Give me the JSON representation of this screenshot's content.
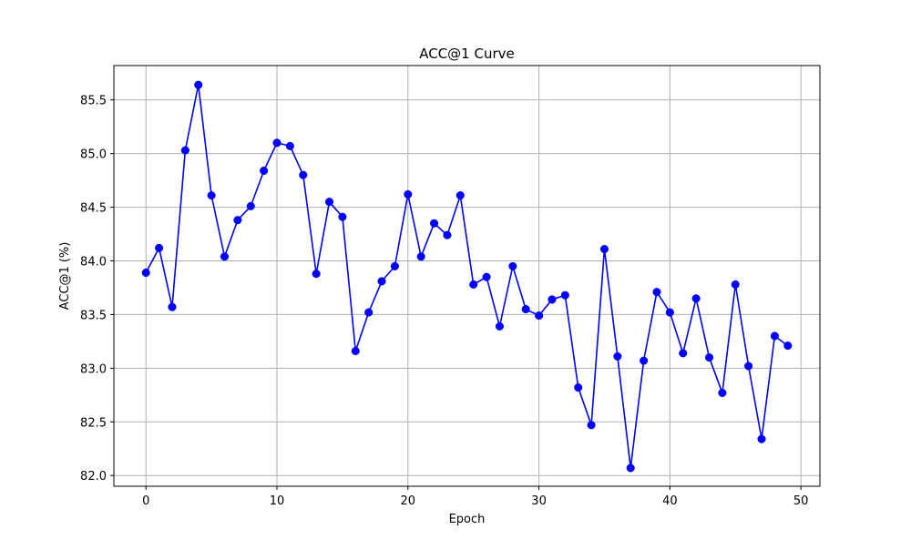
{
  "chart_data": {
    "type": "line",
    "title": "ACC@1 Curve",
    "xlabel": "Epoch",
    "ylabel": "ACC@1 (%)",
    "xlim": [
      -2.45,
      51.45
    ],
    "ylim": [
      81.9,
      85.82
    ],
    "x_ticks": [
      0,
      10,
      20,
      30,
      40,
      50
    ],
    "y_ticks": [
      82.0,
      82.5,
      83.0,
      83.5,
      84.0,
      84.5,
      85.0,
      85.5
    ],
    "grid": true,
    "marker": "circle",
    "line_color": "#0000ff",
    "marker_color": "#0000ff",
    "series": [
      {
        "x": [
          0,
          1,
          2,
          3,
          4,
          5,
          6,
          7,
          8,
          9,
          10,
          11,
          12,
          13,
          14,
          15,
          16,
          17,
          18,
          19,
          20,
          21,
          22,
          23,
          24,
          25,
          26,
          27,
          28,
          29,
          30,
          31,
          32,
          33,
          34,
          35,
          36,
          37,
          38,
          39,
          40,
          41,
          42,
          43,
          44,
          45,
          46,
          47,
          48,
          49
        ],
        "values": [
          83.89,
          84.12,
          83.57,
          85.03,
          85.64,
          84.61,
          84.04,
          84.38,
          84.51,
          84.84,
          85.1,
          85.07,
          84.8,
          83.88,
          84.55,
          84.41,
          83.16,
          83.52,
          83.81,
          83.95,
          84.62,
          84.04,
          84.35,
          84.24,
          84.61,
          83.78,
          83.85,
          83.39,
          83.95,
          83.55,
          83.49,
          83.64,
          83.68,
          82.82,
          82.47,
          84.11,
          83.11,
          82.07,
          83.07,
          83.71,
          83.52,
          83.14,
          83.65,
          83.1,
          82.77,
          83.78,
          83.02,
          82.34,
          83.3,
          83.21
        ]
      }
    ]
  }
}
